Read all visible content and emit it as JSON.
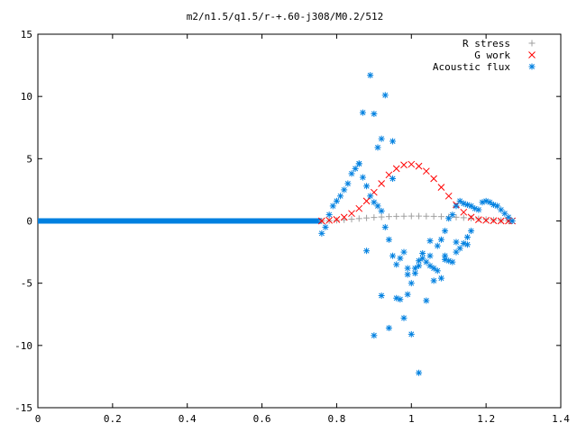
{
  "chart_data": {
    "type": "scatter",
    "title": "m2/n1.5/q1.5/r-+.60-j308/M0.2/512",
    "xlabel": "",
    "ylabel": "",
    "xlim": [
      0,
      1.4
    ],
    "ylim": [
      -15,
      15
    ],
    "x_ticks": [
      0,
      0.2,
      0.4,
      0.6,
      0.8,
      1,
      1.2,
      1.4
    ],
    "y_ticks": [
      -15,
      -10,
      -5,
      0,
      5,
      10,
      15
    ],
    "x_tick_labels": [
      "0",
      "0.2",
      "0.4",
      "0.6",
      "0.8",
      "1",
      "1.2",
      "1.4"
    ],
    "y_tick_labels": [
      "-15",
      "-10",
      "-5",
      "0",
      "5",
      "10",
      "15"
    ],
    "grid": false,
    "legend_position": "top-right",
    "series": [
      {
        "name": "R stress",
        "marker": "plus",
        "color": "#a0a0a0",
        "x": [
          0.76,
          0.78,
          0.8,
          0.82,
          0.84,
          0.86,
          0.88,
          0.9,
          0.92,
          0.94,
          0.96,
          0.98,
          1.0,
          1.02,
          1.04,
          1.06,
          1.08,
          1.1,
          1.12,
          1.14,
          1.16,
          1.18,
          1.2,
          1.22,
          1.24,
          1.26,
          1.27
        ],
        "y": [
          0.0,
          0.02,
          0.05,
          0.09,
          0.14,
          0.19,
          0.24,
          0.28,
          0.32,
          0.35,
          0.37,
          0.38,
          0.39,
          0.39,
          0.38,
          0.37,
          0.35,
          0.33,
          0.3,
          0.26,
          0.22,
          0.17,
          0.12,
          0.08,
          0.04,
          0.01,
          0.0
        ]
      },
      {
        "name": "G work",
        "marker": "cross",
        "color": "#ff0000",
        "x": [
          0.76,
          0.78,
          0.8,
          0.82,
          0.84,
          0.86,
          0.88,
          0.9,
          0.92,
          0.94,
          0.96,
          0.98,
          1.0,
          1.02,
          1.04,
          1.06,
          1.08,
          1.1,
          1.12,
          1.14,
          1.16,
          1.18,
          1.2,
          1.22,
          1.24,
          1.26,
          1.27
        ],
        "y": [
          0.0,
          0.05,
          0.12,
          0.3,
          0.6,
          1.0,
          1.6,
          2.3,
          3.0,
          3.7,
          4.2,
          4.5,
          4.55,
          4.4,
          4.0,
          3.4,
          2.7,
          2.0,
          1.3,
          0.7,
          0.3,
          0.1,
          0.05,
          0.02,
          0.0,
          0.0,
          0.0
        ]
      },
      {
        "name": "Acoustic flux",
        "marker": "star",
        "color": "#0080e0",
        "x": [
          0.76,
          0.77,
          0.78,
          0.79,
          0.8,
          0.81,
          0.82,
          0.83,
          0.84,
          0.85,
          0.86,
          0.87,
          0.88,
          0.89,
          0.9,
          0.91,
          0.92,
          0.93,
          0.94,
          0.95,
          0.96,
          0.97,
          0.98,
          0.99,
          1.0,
          1.01,
          1.02,
          1.03,
          1.04,
          1.05,
          1.06,
          1.07,
          1.08,
          1.09,
          1.1,
          1.11,
          1.12,
          1.13,
          1.14,
          1.15,
          1.16,
          1.17,
          1.18,
          1.19,
          1.2,
          1.21,
          1.22,
          1.23,
          1.24,
          1.25,
          1.26,
          1.27,
          0.87,
          0.89,
          0.9,
          0.91,
          0.93,
          0.95,
          0.96,
          0.98,
          1.0,
          1.02,
          1.04,
          1.06,
          1.08,
          1.1,
          1.12,
          1.14,
          1.16,
          0.88,
          0.9,
          0.92,
          0.94,
          0.97,
          0.99,
          1.01,
          1.03,
          1.05,
          1.07,
          1.09,
          1.11,
          1.13,
          1.15,
          0.86,
          0.92,
          0.95,
          0.99,
          1.02,
          1.05,
          1.09,
          1.12,
          1.15
        ],
        "y": [
          -1.0,
          -0.5,
          0.5,
          1.2,
          1.6,
          2.0,
          2.5,
          3.0,
          3.8,
          4.2,
          4.6,
          3.5,
          2.8,
          2.0,
          1.5,
          1.2,
          0.8,
          -0.5,
          -1.5,
          -2.8,
          -3.5,
          -3.0,
          -2.5,
          -3.8,
          -5.0,
          -4.2,
          -3.6,
          -3.0,
          -3.3,
          -2.8,
          -3.8,
          -2.0,
          -1.5,
          -0.8,
          0.2,
          0.5,
          1.2,
          1.6,
          1.4,
          1.3,
          1.2,
          1.0,
          0.9,
          1.5,
          1.6,
          1.5,
          1.3,
          1.2,
          0.9,
          0.6,
          0.3,
          0.0,
          8.7,
          11.7,
          8.6,
          5.9,
          10.1,
          6.4,
          -6.2,
          -7.8,
          -9.1,
          -12.2,
          -6.4,
          -4.8,
          -4.6,
          -3.2,
          -2.5,
          -1.8,
          -0.8,
          -2.4,
          -9.2,
          -6.0,
          -8.6,
          -6.3,
          -4.3,
          -3.8,
          -2.6,
          -1.6,
          -4.0,
          -3.1,
          -3.3,
          -2.2,
          -1.9,
          4.6,
          6.6,
          3.4,
          -5.9,
          -3.2,
          -3.6,
          -2.8,
          -1.7,
          -1.3
        ]
      }
    ]
  }
}
